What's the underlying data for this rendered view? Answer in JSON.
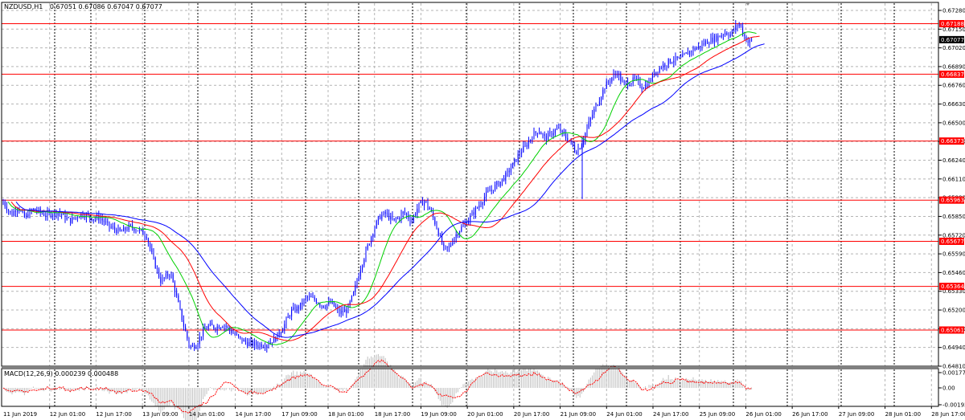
{
  "chart_data": {
    "type": "candlestick",
    "title": {
      "symbol_tf": "NZDUSD,H1",
      "ohlc": "0.67051 0.67086 0.67047 0.67077"
    },
    "price_ticks": [
      "0.67280",
      "0.67150",
      "0.67020",
      "0.66890",
      "0.66760",
      "0.66630",
      "0.66500",
      "0.66370",
      "0.66240",
      "0.66110",
      "0.65980",
      "0.65850",
      "0.65720",
      "0.65590",
      "0.65460",
      "0.65330",
      "0.65200",
      "0.65070",
      "0.64940",
      "0.64810"
    ],
    "price_range": [
      0.6481,
      0.6733
    ],
    "current_price": "0.67077",
    "levels": [
      "0.67188",
      "0.66837",
      "0.66373",
      "0.65963",
      "0.65677",
      "0.65364",
      "0.65061"
    ],
    "time_labels": [
      "11 Jun 2019",
      "12 Jun 01:00",
      "12 Jun 17:00",
      "13 Jun 09:00",
      "14 Jun 01:00",
      "14 Jun 17:00",
      "17 Jun 09:00",
      "18 Jun 01:00",
      "18 Jun 17:00",
      "19 Jun 09:00",
      "20 Jun 01:00",
      "20 Jun 17:00",
      "21 Jun 09:00",
      "24 Jun 01:00",
      "24 Jun 17:00",
      "25 Jun 09:00",
      "26 Jun 01:00",
      "26 Jun 17:00",
      "27 Jun 09:00",
      "28 Jun 01:00",
      "28 Jun 17:00"
    ],
    "price_path": [
      [
        0,
        0.6597
      ],
      [
        12,
        0.6586
      ],
      [
        20,
        0.6592
      ],
      [
        28,
        0.6584
      ],
      [
        40,
        0.659
      ],
      [
        55,
        0.6586
      ],
      [
        70,
        0.6588
      ],
      [
        85,
        0.6582
      ],
      [
        100,
        0.6587
      ],
      [
        112,
        0.6584
      ],
      [
        122,
        0.6584
      ],
      [
        134,
        0.6578
      ],
      [
        148,
        0.6574
      ],
      [
        160,
        0.6578
      ],
      [
        172,
        0.6575
      ],
      [
        180,
        0.6572
      ],
      [
        188,
        0.6556
      ],
      [
        198,
        0.654
      ],
      [
        210,
        0.6546
      ],
      [
        218,
        0.6528
      ],
      [
        226,
        0.651
      ],
      [
        234,
        0.6494
      ],
      [
        242,
        0.6496
      ],
      [
        250,
        0.6505
      ],
      [
        258,
        0.6509
      ],
      [
        266,
        0.6508
      ],
      [
        276,
        0.651
      ],
      [
        286,
        0.6505
      ],
      [
        296,
        0.65
      ],
      [
        306,
        0.6497
      ],
      [
        316,
        0.6496
      ],
      [
        328,
        0.6496
      ],
      [
        340,
        0.65
      ],
      [
        350,
        0.6508
      ],
      [
        360,
        0.6519
      ],
      [
        370,
        0.6522
      ],
      [
        380,
        0.6529
      ],
      [
        390,
        0.6527
      ],
      [
        400,
        0.6523
      ],
      [
        410,
        0.6525
      ],
      [
        420,
        0.6518
      ],
      [
        430,
        0.652
      ],
      [
        438,
        0.6532
      ],
      [
        446,
        0.6549
      ],
      [
        454,
        0.6562
      ],
      [
        462,
        0.6575
      ],
      [
        470,
        0.6585
      ],
      [
        478,
        0.6587
      ],
      [
        486,
        0.6582
      ],
      [
        494,
        0.6584
      ],
      [
        500,
        0.6588
      ],
      [
        510,
        0.6582
      ],
      [
        518,
        0.6592
      ],
      [
        526,
        0.6596
      ],
      [
        534,
        0.6588
      ],
      [
        542,
        0.6576
      ],
      [
        550,
        0.6562
      ],
      [
        556,
        0.6563
      ],
      [
        562,
        0.657
      ],
      [
        570,
        0.6576
      ],
      [
        578,
        0.6581
      ],
      [
        586,
        0.6587
      ],
      [
        594,
        0.6593
      ],
      [
        602,
        0.66
      ],
      [
        610,
        0.6604
      ],
      [
        620,
        0.6609
      ],
      [
        628,
        0.6614
      ],
      [
        636,
        0.6621
      ],
      [
        644,
        0.6629
      ],
      [
        652,
        0.6634
      ],
      [
        660,
        0.6641
      ],
      [
        668,
        0.6645
      ],
      [
        676,
        0.6639
      ],
      [
        684,
        0.6643
      ],
      [
        692,
        0.6646
      ],
      [
        700,
        0.6641
      ],
      [
        708,
        0.6636
      ],
      [
        714,
        0.663
      ],
      [
        720,
        0.6634
      ],
      [
        726,
        0.6643
      ],
      [
        734,
        0.6655
      ],
      [
        742,
        0.6665
      ],
      [
        750,
        0.6675
      ],
      [
        758,
        0.6681
      ],
      [
        766,
        0.6685
      ],
      [
        772,
        0.6677
      ],
      [
        780,
        0.6678
      ],
      [
        788,
        0.668
      ],
      [
        796,
        0.6675
      ],
      [
        804,
        0.6677
      ],
      [
        812,
        0.6685
      ],
      [
        820,
        0.6689
      ],
      [
        828,
        0.6692
      ],
      [
        836,
        0.6694
      ],
      [
        844,
        0.6694
      ],
      [
        852,
        0.6698
      ],
      [
        860,
        0.6701
      ],
      [
        868,
        0.6703
      ],
      [
        876,
        0.6706
      ],
      [
        884,
        0.6708
      ],
      [
        892,
        0.671
      ],
      [
        900,
        0.6713
      ],
      [
        906,
        0.6711
      ],
      [
        912,
        0.6716
      ],
      [
        918,
        0.6719
      ],
      [
        922,
        0.6712
      ],
      [
        928,
        0.6706
      ],
      [
        934,
        0.6707
      ]
    ],
    "indicators": {
      "ma_fast_color": "#00d000",
      "ma_mid_color": "#ff0000",
      "ma_slow_color": "#0000ff"
    },
    "sub_panel": {
      "label": "MACD(12,26,9) 0.000239 0.000488",
      "ticks": [
        "0.001779",
        "0.00",
        "-0.001939"
      ],
      "histogram_color": "#c0c0c0",
      "signal_color": "#ff0000"
    },
    "colors": {
      "candle": "#0000ff",
      "level_line": "#ff0000",
      "level_tag": "#ff0000",
      "current_tag": "#000000",
      "grid": "#b4b4b4",
      "day_separator": "#000000"
    }
  }
}
